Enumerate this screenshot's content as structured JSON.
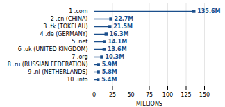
{
  "chart_data": {
    "type": "bar",
    "orientation": "horizontal",
    "categories": [
      [
        "1",
        ".com"
      ],
      [
        "2",
        ".cn",
        "(CHINA)"
      ],
      [
        "3",
        ".tk",
        "(TOKELAU)"
      ],
      [
        "4",
        ".de",
        "(GERMANY)"
      ],
      [
        "5",
        ".net"
      ],
      [
        "6",
        ".uk",
        "(UNITED KINGDOM)"
      ],
      [
        "7",
        ".org"
      ],
      [
        "8",
        ".ru",
        "(RUSSIAN FEDERATION)"
      ],
      [
        "9",
        ".nl",
        "(NETHERLANDS)"
      ],
      [
        "10",
        ".info"
      ]
    ],
    "values": [
      135.6,
      22.7,
      21.5,
      16.3,
      14.1,
      13.6,
      10.3,
      5.9,
      5.8,
      5.4
    ],
    "value_labels": [
      "135.6M",
      "22.7M",
      "21.5M",
      "16.3M",
      "14.1M",
      "13.6M",
      "10.3M",
      "5.9M",
      "5.8M",
      "5.4M"
    ],
    "data_labels": true,
    "color": "#1b4f8c",
    "marker": "square",
    "xlabel": "MILLIONS",
    "xlim": [
      0,
      150
    ],
    "xticks": [
      0,
      25,
      50,
      75,
      100,
      125,
      150
    ],
    "grid": true
  }
}
